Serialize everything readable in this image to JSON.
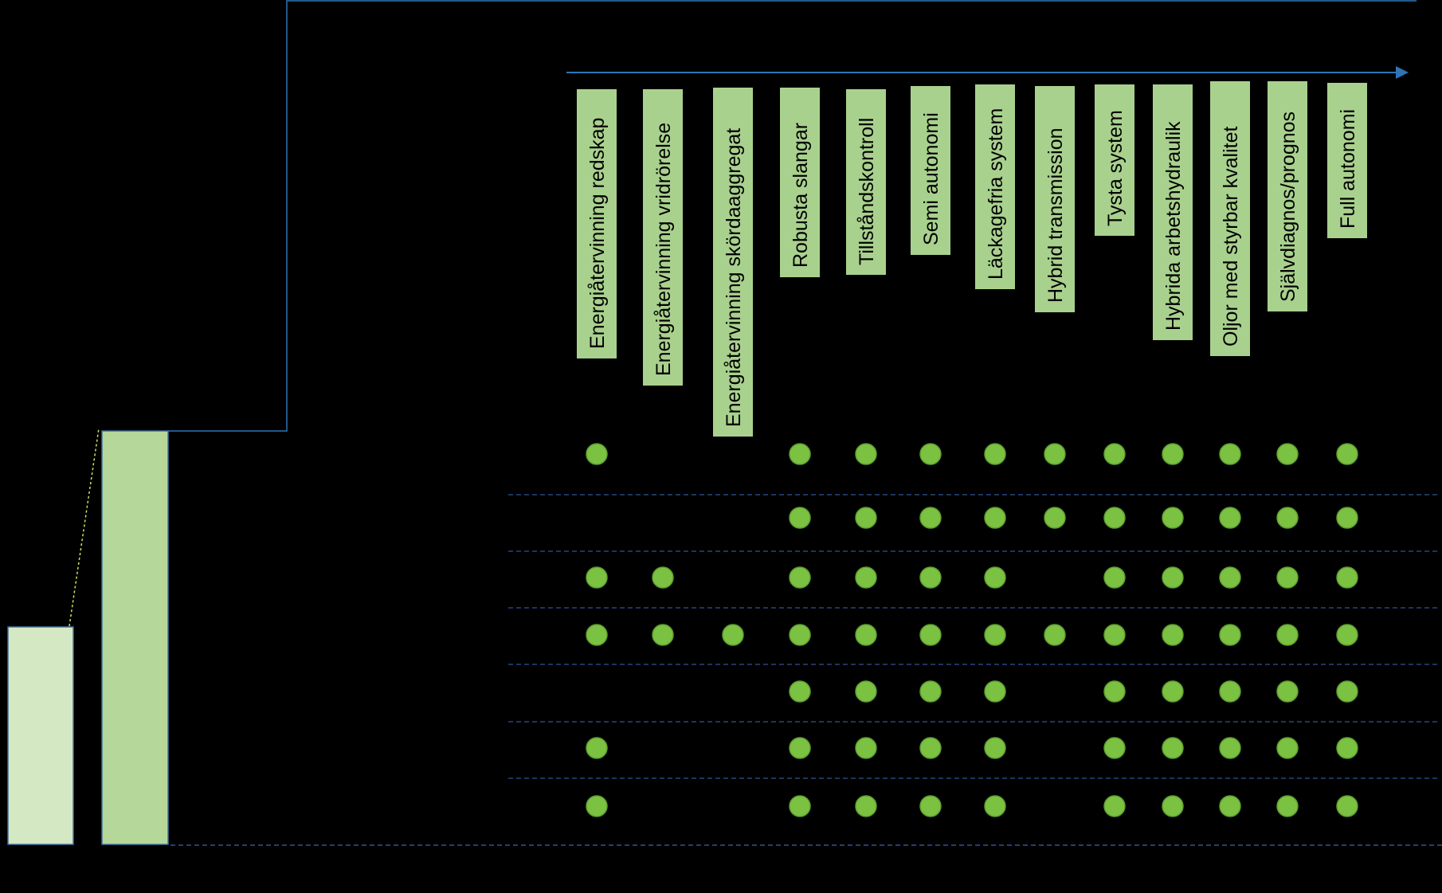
{
  "colors": {
    "background": "#000000",
    "label_box": "#a9d18e",
    "dot": "#7cc242",
    "dot_edge": "#5f9e2f",
    "bar_small": "#d5e8c4",
    "bar_large": "#b5d89a",
    "bar_edge": "#41719c",
    "arrow": "#2e75b6",
    "row_divider": "#2f5597"
  },
  "diagram": {
    "columns": [
      {
        "label": "Energiåtervinning redskap"
      },
      {
        "label": "Energiåtervinning vridrörelse"
      },
      {
        "label": "Energiåtervinning skördaaggregat"
      },
      {
        "label": "Robusta slangar"
      },
      {
        "label": "Tillståndskontroll"
      },
      {
        "label": "Semi autonomi"
      },
      {
        "label": "Läckagefria system"
      },
      {
        "label": "Hybrid transmission"
      },
      {
        "label": "Tysta system"
      },
      {
        "label": "Hybrida arbetshydraulik"
      },
      {
        "label": "Oljor med styrbar kvalitet"
      },
      {
        "label": "Självdiagnos/prognos"
      },
      {
        "label": "Full autonomi"
      }
    ],
    "rows": [
      {
        "marks": [
          1,
          0,
          0,
          1,
          1,
          1,
          1,
          1,
          1,
          1,
          1,
          1,
          1
        ]
      },
      {
        "marks": [
          0,
          0,
          0,
          1,
          1,
          1,
          1,
          1,
          1,
          1,
          1,
          1,
          1
        ]
      },
      {
        "marks": [
          1,
          1,
          0,
          1,
          1,
          1,
          1,
          0,
          1,
          1,
          1,
          1,
          1
        ]
      },
      {
        "marks": [
          1,
          1,
          1,
          1,
          1,
          1,
          1,
          1,
          1,
          1,
          1,
          1,
          1
        ]
      },
      {
        "marks": [
          0,
          0,
          0,
          1,
          1,
          1,
          1,
          0,
          1,
          1,
          1,
          1,
          1
        ]
      },
      {
        "marks": [
          1,
          0,
          0,
          1,
          1,
          1,
          1,
          0,
          1,
          1,
          1,
          1,
          1
        ]
      },
      {
        "marks": [
          1,
          0,
          0,
          1,
          1,
          1,
          1,
          0,
          1,
          1,
          1,
          1,
          1
        ]
      }
    ]
  }
}
